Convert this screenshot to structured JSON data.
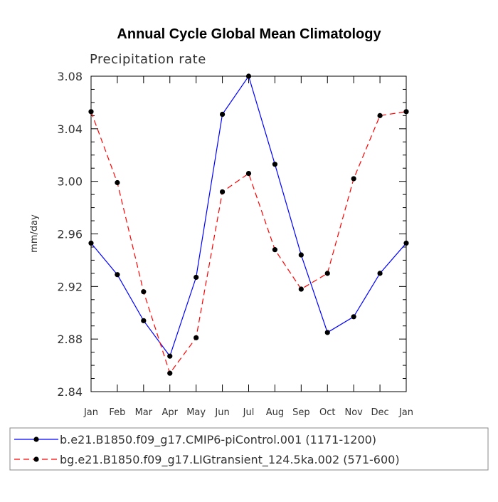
{
  "chart_data": {
    "type": "line",
    "title": "Annual Cycle Global Mean Climatology",
    "subtitle": "Precipitation rate",
    "ylabel": "mm/day",
    "xlabel": "",
    "categories": [
      "Jan",
      "Feb",
      "Mar",
      "Apr",
      "May",
      "Jun",
      "Jul",
      "Aug",
      "Sep",
      "Oct",
      "Nov",
      "Dec",
      "Jan"
    ],
    "ylim": [
      2.84,
      3.08
    ],
    "yticks": [
      "2.84",
      "2.88",
      "2.92",
      "2.96",
      "3.00",
      "3.04",
      "3.08"
    ],
    "series": [
      {
        "name": "b.e21.B1850.f09_g17.CMIP6-piControl.001 (1171-1200)",
        "color": "#0000ff",
        "style": "solid",
        "values": [
          2.953,
          2.929,
          2.894,
          2.867,
          2.927,
          3.051,
          3.08,
          3.013,
          2.944,
          2.885,
          2.897,
          2.93,
          2.953
        ]
      },
      {
        "name": "bg.e21.B1850.f09_g17.LIGtransient_124.5ka.002 (571-600)",
        "color": "#ff0000",
        "style": "dashed",
        "values": [
          3.053,
          2.999,
          2.916,
          2.854,
          2.881,
          2.992,
          3.006,
          2.948,
          2.918,
          2.93,
          3.002,
          3.05,
          3.053
        ]
      }
    ],
    "legend_position": "bottom"
  }
}
